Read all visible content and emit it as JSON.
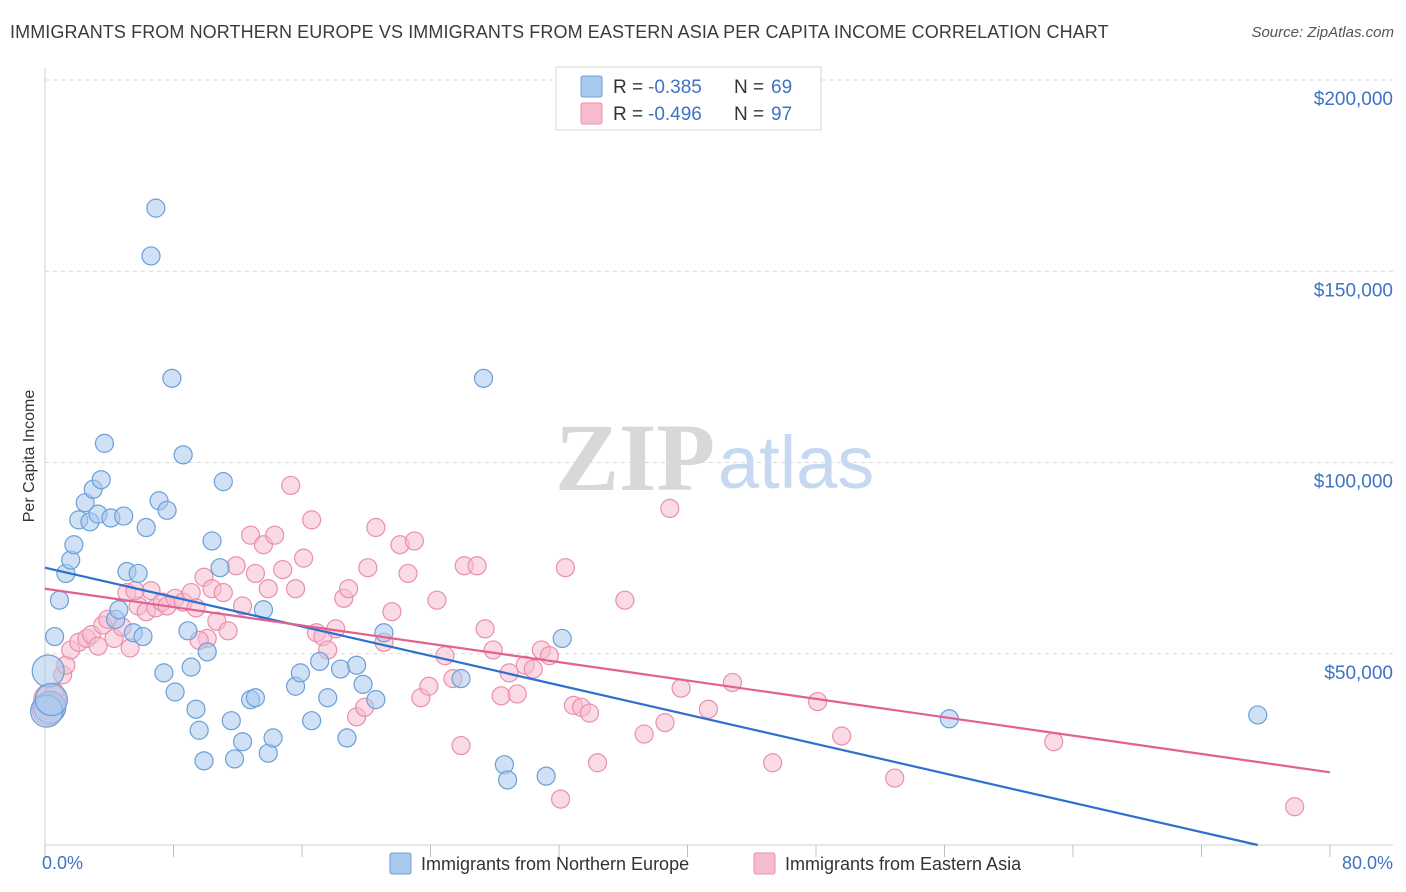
{
  "header": {
    "title": "IMMIGRANTS FROM NORTHERN EUROPE VS IMMIGRANTS FROM EASTERN ASIA PER CAPITA INCOME CORRELATION CHART",
    "source": "Source: ZipAtlas.com"
  },
  "watermark": {
    "zip": "ZIP",
    "atlas": "atlas"
  },
  "colors": {
    "series1_fill": "#a9c8ef",
    "series1_stroke": "#6a9fd8",
    "series1_line": "#2f6fce",
    "series2_fill": "#f6bccd",
    "series2_stroke": "#ea8fac",
    "series2_line": "#e0628e",
    "tick_text": "#3f72c4",
    "grid": "#d9d9d9"
  },
  "legend": {
    "rows": [
      {
        "r_label": "R =",
        "r_value": "-0.385",
        "n_label": "N =",
        "n_value": "69"
      },
      {
        "r_label": "R =",
        "r_value": "-0.496",
        "n_label": "N =",
        "n_value": "97"
      }
    ]
  },
  "chart_data": {
    "type": "scatter",
    "title": "IMMIGRANTS FROM NORTHERN EUROPE VS IMMIGRANTS FROM EASTERN ASIA PER CAPITA INCOME CORRELATION CHART",
    "xlabel": "",
    "ylabel": "Per Capita Income",
    "xlim": [
      0,
      80
    ],
    "ylim": [
      0,
      210000
    ],
    "x_tick_labels": [
      "0.0%",
      "80.0%"
    ],
    "y_ticks": [
      50000,
      100000,
      150000,
      200000
    ],
    "y_tick_labels": [
      "$50,000",
      "$100,000",
      "$150,000",
      "$200,000"
    ],
    "grid": true,
    "series": [
      {
        "name": "Immigrants from Northern Europe",
        "r": -0.385,
        "n": 69,
        "trend": {
          "x": [
            0,
            75.5
          ],
          "y": [
            72500,
            0
          ]
        },
        "points": [
          [
            0.2,
            45500
          ],
          [
            0.3,
            36000
          ],
          [
            0.6,
            54500
          ],
          [
            0.9,
            64000
          ],
          [
            1.3,
            71000
          ],
          [
            1.6,
            74500
          ],
          [
            1.8,
            78500
          ],
          [
            2.1,
            85000
          ],
          [
            2.5,
            89500
          ],
          [
            2.8,
            84500
          ],
          [
            3.0,
            93000
          ],
          [
            3.3,
            86500
          ],
          [
            3.5,
            95500
          ],
          [
            3.7,
            105000
          ],
          [
            4.1,
            85500
          ],
          [
            4.4,
            59000
          ],
          [
            4.6,
            61500
          ],
          [
            4.9,
            86000
          ],
          [
            5.1,
            71500
          ],
          [
            5.5,
            55500
          ],
          [
            5.8,
            71000
          ],
          [
            6.1,
            54500
          ],
          [
            6.3,
            83000
          ],
          [
            6.6,
            154000
          ],
          [
            6.9,
            166500
          ],
          [
            7.1,
            90000
          ],
          [
            7.4,
            45000
          ],
          [
            7.6,
            87500
          ],
          [
            7.9,
            122000
          ],
          [
            8.1,
            40000
          ],
          [
            8.6,
            102000
          ],
          [
            8.9,
            56000
          ],
          [
            9.1,
            46500
          ],
          [
            9.4,
            35500
          ],
          [
            9.6,
            30000
          ],
          [
            9.9,
            22000
          ],
          [
            10.1,
            50500
          ],
          [
            10.4,
            79500
          ],
          [
            10.9,
            72500
          ],
          [
            11.1,
            95000
          ],
          [
            11.6,
            32500
          ],
          [
            11.8,
            22500
          ],
          [
            12.3,
            27000
          ],
          [
            12.8,
            38000
          ],
          [
            13.1,
            38500
          ],
          [
            13.6,
            61500
          ],
          [
            13.9,
            24000
          ],
          [
            14.2,
            28000
          ],
          [
            15.6,
            41500
          ],
          [
            15.9,
            45000
          ],
          [
            16.6,
            32500
          ],
          [
            17.1,
            48000
          ],
          [
            17.6,
            38500
          ],
          [
            18.4,
            46000
          ],
          [
            18.8,
            28000
          ],
          [
            19.4,
            47000
          ],
          [
            19.8,
            42000
          ],
          [
            20.6,
            38000
          ],
          [
            21.1,
            55500
          ],
          [
            25.9,
            43500
          ],
          [
            27.3,
            122000
          ],
          [
            28.6,
            21000
          ],
          [
            28.8,
            17000
          ],
          [
            31.2,
            18000
          ],
          [
            32.2,
            54000
          ],
          [
            56.3,
            33000
          ],
          [
            75.5,
            34000
          ],
          [
            0.1,
            35000
          ],
          [
            0.4,
            38000
          ]
        ]
      },
      {
        "name": "Immigrants from Eastern Asia",
        "r": -0.496,
        "n": 97,
        "trend": {
          "x": [
            0,
            80
          ],
          "y": [
            67000,
            19000
          ]
        },
        "points": [
          [
            0.3,
            38000
          ],
          [
            0.6,
            40000
          ],
          [
            1.1,
            44500
          ],
          [
            1.3,
            47000
          ],
          [
            1.6,
            51000
          ],
          [
            2.1,
            53000
          ],
          [
            2.6,
            54000
          ],
          [
            2.9,
            55000
          ],
          [
            3.3,
            52000
          ],
          [
            3.6,
            57500
          ],
          [
            3.9,
            59000
          ],
          [
            4.3,
            54000
          ],
          [
            4.8,
            57000
          ],
          [
            5.1,
            66000
          ],
          [
            5.3,
            51500
          ],
          [
            5.8,
            62500
          ],
          [
            6.3,
            61000
          ],
          [
            6.6,
            66500
          ],
          [
            6.9,
            62000
          ],
          [
            7.3,
            63500
          ],
          [
            7.6,
            62500
          ],
          [
            8.1,
            64500
          ],
          [
            8.6,
            63500
          ],
          [
            9.1,
            66000
          ],
          [
            9.4,
            62000
          ],
          [
            9.9,
            70000
          ],
          [
            10.1,
            54000
          ],
          [
            10.4,
            67000
          ],
          [
            10.7,
            58500
          ],
          [
            11.1,
            66000
          ],
          [
            11.4,
            56000
          ],
          [
            11.9,
            73000
          ],
          [
            12.3,
            62500
          ],
          [
            12.8,
            81000
          ],
          [
            13.1,
            71000
          ],
          [
            13.6,
            78500
          ],
          [
            13.9,
            67000
          ],
          [
            14.3,
            81000
          ],
          [
            14.8,
            72000
          ],
          [
            15.3,
            94000
          ],
          [
            15.6,
            67000
          ],
          [
            16.1,
            75000
          ],
          [
            16.6,
            85000
          ],
          [
            16.9,
            55500
          ],
          [
            17.3,
            54500
          ],
          [
            17.6,
            51000
          ],
          [
            18.1,
            56500
          ],
          [
            18.6,
            64500
          ],
          [
            18.9,
            67000
          ],
          [
            19.4,
            33500
          ],
          [
            19.9,
            36000
          ],
          [
            20.1,
            72500
          ],
          [
            20.6,
            83000
          ],
          [
            21.1,
            53000
          ],
          [
            21.6,
            61000
          ],
          [
            22.1,
            78500
          ],
          [
            22.6,
            71000
          ],
          [
            23.0,
            79500
          ],
          [
            23.4,
            38500
          ],
          [
            23.9,
            41500
          ],
          [
            24.4,
            64000
          ],
          [
            24.9,
            49500
          ],
          [
            25.4,
            43500
          ],
          [
            25.9,
            26000
          ],
          [
            26.1,
            73000
          ],
          [
            26.9,
            73000
          ],
          [
            27.4,
            56500
          ],
          [
            27.9,
            51000
          ],
          [
            28.4,
            39000
          ],
          [
            28.9,
            45000
          ],
          [
            29.4,
            39500
          ],
          [
            29.9,
            47000
          ],
          [
            30.4,
            46000
          ],
          [
            30.9,
            51000
          ],
          [
            31.4,
            49500
          ],
          [
            32.1,
            12000
          ],
          [
            32.4,
            72500
          ],
          [
            32.9,
            36500
          ],
          [
            33.4,
            36000
          ],
          [
            33.9,
            34500
          ],
          [
            34.4,
            21500
          ],
          [
            36.1,
            64000
          ],
          [
            37.3,
            29000
          ],
          [
            38.6,
            32000
          ],
          [
            38.9,
            88000
          ],
          [
            39.6,
            41000
          ],
          [
            41.3,
            35500
          ],
          [
            42.8,
            42500
          ],
          [
            45.3,
            21500
          ],
          [
            48.1,
            37500
          ],
          [
            49.6,
            28500
          ],
          [
            52.9,
            17500
          ],
          [
            62.8,
            27000
          ],
          [
            77.8,
            10000
          ],
          [
            0.2,
            35500
          ],
          [
            5.6,
            66500
          ],
          [
            9.6,
            53500
          ]
        ]
      }
    ]
  },
  "bottom_legend": {
    "items": [
      {
        "label": "Immigrants from Northern Europe"
      },
      {
        "label": "Immigrants from Eastern Asia"
      }
    ]
  }
}
